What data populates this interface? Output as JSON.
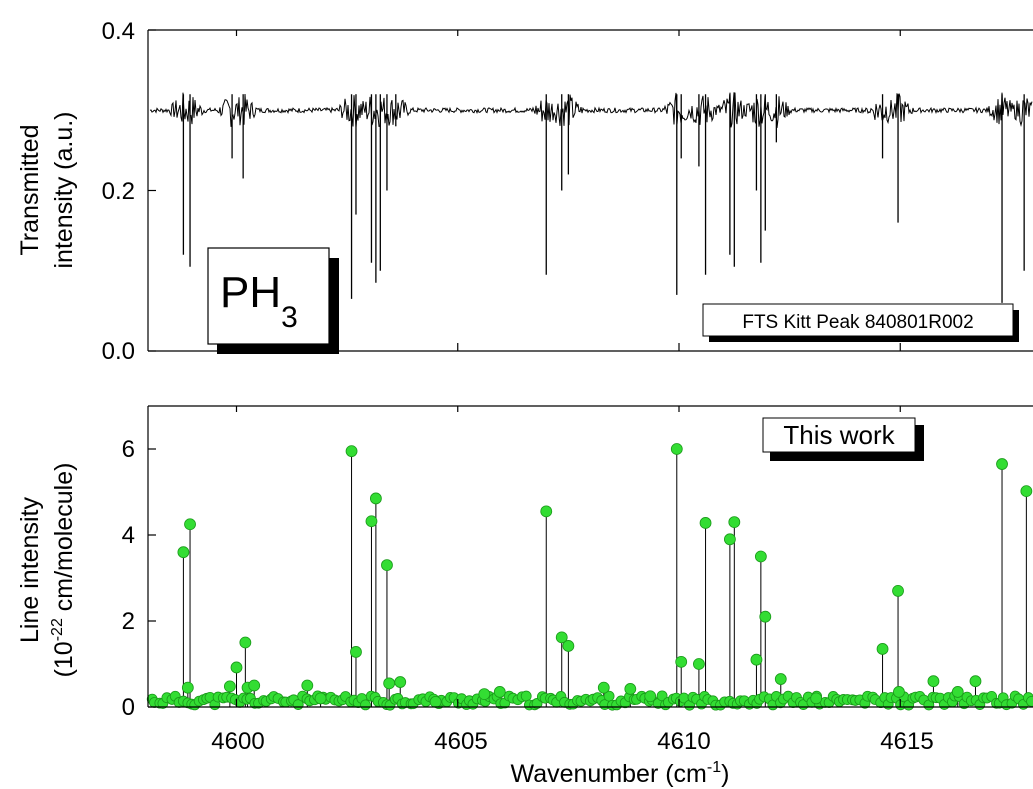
{
  "chart_data": [
    {
      "type": "line",
      "ylabel_line1": "Transmitted",
      "ylabel_line2": "intensity (a.u.)",
      "ylim": [
        0.0,
        0.4
      ],
      "xlim": [
        4598.0,
        4618.0
      ],
      "y_ticks": [
        "0.0",
        "0.2",
        "0.4"
      ],
      "baseline": 0.3,
      "molecule": "PH",
      "molecule_sub": "3",
      "source_label": "FTS Kitt Peak 840801R002",
      "absorption_lines": [
        {
          "x": 4598.8,
          "min": 0.12
        },
        {
          "x": 4598.95,
          "min": 0.105
        },
        {
          "x": 4599.9,
          "min": 0.24
        },
        {
          "x": 4600.15,
          "min": 0.215
        },
        {
          "x": 4602.6,
          "min": 0.065
        },
        {
          "x": 4602.7,
          "min": 0.17
        },
        {
          "x": 4603.05,
          "min": 0.11
        },
        {
          "x": 4603.15,
          "min": 0.085
        },
        {
          "x": 4603.25,
          "min": 0.1
        },
        {
          "x": 4603.4,
          "min": 0.2
        },
        {
          "x": 4603.6,
          "min": 0.28
        },
        {
          "x": 4607.0,
          "min": 0.095
        },
        {
          "x": 4607.35,
          "min": 0.2
        },
        {
          "x": 4607.5,
          "min": 0.22
        },
        {
          "x": 4609.95,
          "min": 0.07
        },
        {
          "x": 4610.05,
          "min": 0.24
        },
        {
          "x": 4610.45,
          "min": 0.23
        },
        {
          "x": 4610.6,
          "min": 0.095
        },
        {
          "x": 4611.15,
          "min": 0.12
        },
        {
          "x": 4611.25,
          "min": 0.105
        },
        {
          "x": 4611.75,
          "min": 0.2
        },
        {
          "x": 4611.85,
          "min": 0.11
        },
        {
          "x": 4611.95,
          "min": 0.15
        },
        {
          "x": 4612.2,
          "min": 0.26
        },
        {
          "x": 4614.6,
          "min": 0.24
        },
        {
          "x": 4614.95,
          "min": 0.16
        },
        {
          "x": 4617.3,
          "min": 0.06
        },
        {
          "x": 4617.8,
          "min": 0.1
        }
      ]
    },
    {
      "type": "scatter",
      "xlabel": "Wavenumber (cm",
      "xlabel_sup": "-1",
      "xlabel_end": ")",
      "ylabel_line1": "Line intensity",
      "ylabel_line2_a": "(10",
      "ylabel_line2_sup": "-22",
      "ylabel_line2_b": " cm/molecule)",
      "xlim": [
        4598.0,
        4618.0
      ],
      "ylim": [
        0,
        7
      ],
      "x_ticks": [
        "4600",
        "4605",
        "4610",
        "4615"
      ],
      "y_ticks": [
        "0",
        "2",
        "4",
        "6"
      ],
      "legend_label": "This work",
      "point_color": "#33dd33",
      "points": [
        [
          4598.8,
          3.6
        ],
        [
          4598.95,
          4.25
        ],
        [
          4598.9,
          0.45
        ],
        [
          4599.85,
          0.48
        ],
        [
          4600.0,
          0.92
        ],
        [
          4600.2,
          1.5
        ],
        [
          4600.25,
          0.45
        ],
        [
          4600.4,
          0.5
        ],
        [
          4601.6,
          0.5
        ],
        [
          4601.9,
          0.2
        ],
        [
          4602.6,
          5.95
        ],
        [
          4602.7,
          1.28
        ],
        [
          4603.05,
          4.32
        ],
        [
          4603.15,
          4.85
        ],
        [
          4603.4,
          3.3
        ],
        [
          4603.45,
          0.55
        ],
        [
          4603.7,
          0.58
        ],
        [
          4604.5,
          0.12
        ],
        [
          4605.6,
          0.3
        ],
        [
          4605.95,
          0.35
        ],
        [
          4607.0,
          4.55
        ],
        [
          4607.35,
          1.62
        ],
        [
          4607.5,
          1.42
        ],
        [
          4608.3,
          0.45
        ],
        [
          4608.9,
          0.42
        ],
        [
          4609.35,
          0.25
        ],
        [
          4609.95,
          6.0
        ],
        [
          4610.05,
          1.05
        ],
        [
          4610.45,
          1.0
        ],
        [
          4610.6,
          4.28
        ],
        [
          4611.15,
          3.9
        ],
        [
          4611.25,
          4.3
        ],
        [
          4611.75,
          1.1
        ],
        [
          4611.85,
          3.5
        ],
        [
          4611.95,
          2.1
        ],
        [
          4612.3,
          0.65
        ],
        [
          4613.1,
          0.2
        ],
        [
          4614.6,
          1.35
        ],
        [
          4614.95,
          2.7
        ],
        [
          4614.97,
          0.35
        ],
        [
          4615.75,
          0.6
        ],
        [
          4616.3,
          0.35
        ],
        [
          4616.7,
          0.6
        ],
        [
          4617.3,
          5.65
        ],
        [
          4617.85,
          5.02
        ]
      ]
    }
  ]
}
